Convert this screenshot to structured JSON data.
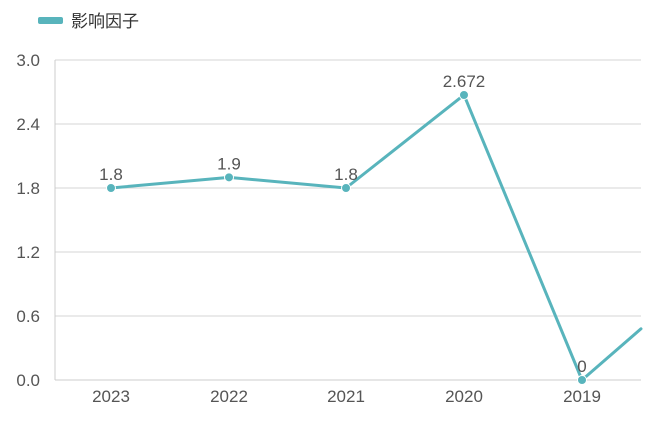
{
  "legend": {
    "label": "影响因子"
  },
  "colors": {
    "series": "#58b4bc",
    "grid": "#d6d6d6",
    "axis": "#cccccc",
    "text": "#555555"
  },
  "chart_data": {
    "type": "line",
    "categories": [
      "2023",
      "2022",
      "2021",
      "2020",
      "2019"
    ],
    "series": [
      {
        "name": "影响因子",
        "values": [
          1.8,
          1.9,
          1.8,
          2.672,
          0
        ],
        "data_labels": [
          "1.8",
          "1.9",
          "1.8",
          "2.672",
          "0"
        ]
      }
    ],
    "y_ticks": [
      "0.0",
      "0.6",
      "1.2",
      "1.8",
      "2.4",
      "3.0"
    ],
    "ylim": [
      0,
      3.0
    ],
    "grid": true,
    "legend_position": "top-left",
    "continues_past_right_edge": {
      "trend": "up-to-about",
      "value": 0.48
    }
  }
}
